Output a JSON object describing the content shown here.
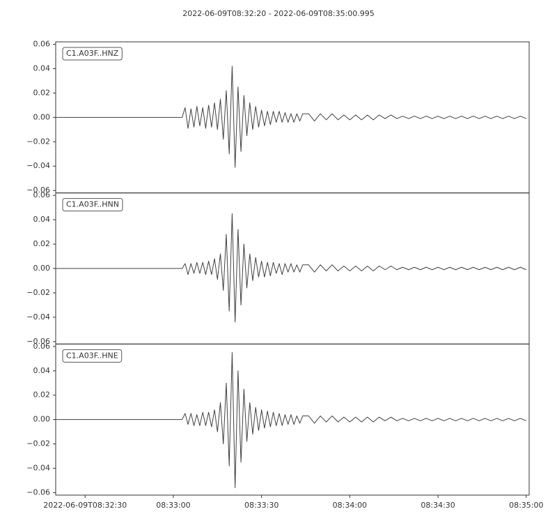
{
  "chart_data": {
    "type": "line",
    "title": "2022-06-09T08:32:20  -  2022-06-09T08:35:00.995",
    "xlim": [
      "2022-06-09T08:32:20",
      "2022-06-09T08:35:00.995"
    ],
    "xticks": [
      {
        "value": "2022-06-09T08:32:30",
        "label": "2022-06-09T08:32:30"
      },
      {
        "value": "2022-06-09T08:33:00",
        "label": "08:33:00"
      },
      {
        "value": "2022-06-09T08:33:30",
        "label": "08:33:30"
      },
      {
        "value": "2022-06-09T08:34:00",
        "label": "08:34:00"
      },
      {
        "value": "2022-06-09T08:34:30",
        "label": "08:34:30"
      },
      {
        "value": "2022-06-09T08:35:00",
        "label": "08:35:00"
      }
    ],
    "ylim": [
      -0.062,
      0.062
    ],
    "yticks": [
      {
        "value": -0.06,
        "label": "−0.06"
      },
      {
        "value": -0.04,
        "label": "−0.04"
      },
      {
        "value": -0.02,
        "label": "−0.02"
      },
      {
        "value": 0,
        "label": "0.00"
      },
      {
        "value": 0.02,
        "label": "0.02"
      },
      {
        "value": 0.04,
        "label": "0.04"
      },
      {
        "value": 0.06,
        "label": "0.06"
      }
    ],
    "grid": false,
    "x": [
      "2022-06-09T08:32:20",
      "2022-06-09T08:33:03",
      "2022-06-09T08:33:04",
      "2022-06-09T08:33:05",
      "2022-06-09T08:33:06",
      "2022-06-09T08:33:07",
      "2022-06-09T08:33:08",
      "2022-06-09T08:33:09",
      "2022-06-09T08:33:10",
      "2022-06-09T08:33:11",
      "2022-06-09T08:33:12",
      "2022-06-09T08:33:13",
      "2022-06-09T08:33:14",
      "2022-06-09T08:33:15",
      "2022-06-09T08:33:16",
      "2022-06-09T08:33:17",
      "2022-06-09T08:33:18",
      "2022-06-09T08:33:19",
      "2022-06-09T08:33:20",
      "2022-06-09T08:33:21",
      "2022-06-09T08:33:22",
      "2022-06-09T08:33:23",
      "2022-06-09T08:33:24",
      "2022-06-09T08:33:25",
      "2022-06-09T08:33:26",
      "2022-06-09T08:33:27",
      "2022-06-09T08:33:28",
      "2022-06-09T08:33:29",
      "2022-06-09T08:33:30",
      "2022-06-09T08:33:31",
      "2022-06-09T08:33:32",
      "2022-06-09T08:33:33",
      "2022-06-09T08:33:34",
      "2022-06-09T08:33:35",
      "2022-06-09T08:33:36",
      "2022-06-09T08:33:37",
      "2022-06-09T08:33:38",
      "2022-06-09T08:33:39",
      "2022-06-09T08:33:40",
      "2022-06-09T08:33:41",
      "2022-06-09T08:33:42",
      "2022-06-09T08:33:43",
      "2022-06-09T08:33:44",
      "2022-06-09T08:33:46",
      "2022-06-09T08:33:48",
      "2022-06-09T08:33:50",
      "2022-06-09T08:33:52",
      "2022-06-09T08:33:54",
      "2022-06-09T08:33:56",
      "2022-06-09T08:33:58",
      "2022-06-09T08:34:00",
      "2022-06-09T08:34:02",
      "2022-06-09T08:34:04",
      "2022-06-09T08:34:06",
      "2022-06-09T08:34:08",
      "2022-06-09T08:34:10",
      "2022-06-09T08:34:12",
      "2022-06-09T08:34:14",
      "2022-06-09T08:34:16",
      "2022-06-09T08:34:18",
      "2022-06-09T08:34:20",
      "2022-06-09T08:34:22",
      "2022-06-09T08:34:24",
      "2022-06-09T08:34:26",
      "2022-06-09T08:34:28",
      "2022-06-09T08:34:30",
      "2022-06-09T08:34:32",
      "2022-06-09T08:34:34",
      "2022-06-09T08:34:36",
      "2022-06-09T08:34:38",
      "2022-06-09T08:34:40",
      "2022-06-09T08:34:42",
      "2022-06-09T08:34:44",
      "2022-06-09T08:34:46",
      "2022-06-09T08:34:48",
      "2022-06-09T08:34:50",
      "2022-06-09T08:34:52",
      "2022-06-09T08:34:54",
      "2022-06-09T08:34:56",
      "2022-06-09T08:34:58",
      "2022-06-09T08:35:00"
    ],
    "series": [
      {
        "name": "C1.A03F..HNZ",
        "color": "#3f3f3f",
        "values": [
          0,
          0,
          0.008,
          -0.009,
          0.007,
          -0.008,
          0.009,
          -0.007,
          0.008,
          -0.009,
          0.01,
          -0.008,
          0.012,
          -0.01,
          0.015,
          -0.018,
          0.022,
          -0.03,
          0.042,
          -0.041,
          0.025,
          -0.028,
          0.018,
          -0.015,
          0.012,
          -0.01,
          0.009,
          -0.008,
          0.006,
          -0.007,
          0.005,
          -0.006,
          0.005,
          -0.004,
          0.005,
          -0.004,
          0.004,
          -0.004,
          0.003,
          -0.004,
          0.003,
          -0.003,
          0.003,
          0.003,
          -0.003,
          0.003,
          -0.002,
          0.003,
          -0.002,
          0.002,
          -0.002,
          0.002,
          -0.002,
          0.002,
          -0.002,
          0.002,
          -0.001,
          0.002,
          -0.001,
          0.001,
          -0.001,
          0.001,
          -0.001,
          0.001,
          -0.001,
          0.001,
          -0.001,
          0.001,
          -0.001,
          0.001,
          -0.001,
          0.001,
          -0.001,
          0.001,
          -0.001,
          0.001,
          -0.001,
          0.001,
          -0.001,
          0.001,
          -0.001
        ]
      },
      {
        "name": "C1.A03F..HNN",
        "color": "#3f3f3f",
        "values": [
          0,
          0,
          0.004,
          -0.005,
          0.004,
          -0.004,
          0.005,
          -0.004,
          0.005,
          -0.005,
          0.006,
          -0.005,
          0.008,
          -0.009,
          0.012,
          -0.018,
          0.028,
          -0.035,
          0.045,
          -0.044,
          0.032,
          -0.03,
          0.02,
          -0.016,
          0.012,
          -0.01,
          0.009,
          -0.007,
          0.006,
          -0.007,
          0.005,
          -0.006,
          0.005,
          -0.004,
          0.004,
          -0.005,
          0.004,
          -0.003,
          0.004,
          -0.003,
          0.003,
          -0.003,
          0.003,
          0.003,
          -0.003,
          0.003,
          -0.002,
          0.003,
          -0.002,
          0.002,
          -0.002,
          0.002,
          -0.002,
          0.002,
          -0.002,
          0.002,
          -0.001,
          0.002,
          -0.001,
          0.001,
          -0.001,
          0.001,
          -0.001,
          0.001,
          -0.001,
          0.001,
          -0.001,
          0.001,
          -0.001,
          0.001,
          -0.001,
          0.001,
          -0.001,
          0.001,
          -0.001,
          0.001,
          -0.001,
          0.001,
          -0.001,
          0.001,
          -0.001
        ]
      },
      {
        "name": "C1.A03F..HNE",
        "color": "#3f3f3f",
        "values": [
          0,
          0,
          0.005,
          -0.004,
          0.005,
          -0.005,
          0.004,
          -0.005,
          0.006,
          -0.005,
          0.006,
          -0.006,
          0.008,
          -0.01,
          0.014,
          -0.02,
          0.03,
          -0.038,
          0.055,
          -0.056,
          0.04,
          -0.035,
          0.025,
          -0.018,
          0.014,
          -0.012,
          0.01,
          -0.009,
          0.008,
          -0.007,
          0.007,
          -0.006,
          0.006,
          -0.005,
          0.005,
          -0.005,
          0.004,
          -0.004,
          0.004,
          -0.004,
          0.003,
          -0.003,
          0.003,
          0.003,
          -0.003,
          0.003,
          -0.002,
          0.003,
          -0.002,
          0.002,
          -0.002,
          0.002,
          -0.002,
          0.002,
          -0.002,
          0.002,
          -0.001,
          0.002,
          -0.001,
          0.001,
          -0.001,
          0.001,
          -0.001,
          0.001,
          -0.001,
          0.001,
          -0.001,
          0.001,
          -0.001,
          0.001,
          -0.001,
          0.001,
          -0.001,
          0.001,
          -0.001,
          0.001,
          -0.001,
          0.001,
          -0.001,
          0.001,
          -0.001
        ]
      }
    ]
  }
}
